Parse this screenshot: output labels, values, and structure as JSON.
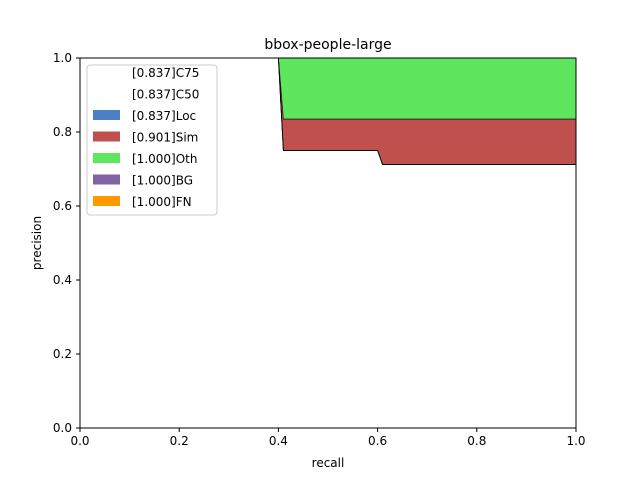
{
  "chart_data": {
    "type": "area",
    "title": "bbox-people-large",
    "xlabel": "recall",
    "ylabel": "precision",
    "xlim": [
      0,
      1
    ],
    "ylim": [
      0,
      1
    ],
    "xticks": [
      "0.0",
      "0.2",
      "0.4",
      "0.6",
      "0.8",
      "1.0"
    ],
    "yticks": [
      "0.0",
      "0.2",
      "0.4",
      "0.6",
      "0.8",
      "1.0"
    ],
    "grid": false,
    "legend_position": "upper-left",
    "series": [
      {
        "name": "[0.837]C75",
        "color": "#ffffff",
        "points": [
          [
            0,
            1
          ],
          [
            0.4,
            1
          ],
          [
            0.41,
            0.75
          ],
          [
            0.6,
            0.75
          ],
          [
            0.61,
            0.712
          ],
          [
            1.0,
            0.712
          ]
        ]
      },
      {
        "name": "[0.837]C50",
        "color": "#ffffff",
        "points": [
          [
            0,
            1
          ],
          [
            0.4,
            1
          ],
          [
            0.41,
            0.75
          ],
          [
            0.6,
            0.75
          ],
          [
            0.61,
            0.712
          ],
          [
            1.0,
            0.712
          ]
        ]
      },
      {
        "name": "[0.837]Loc",
        "color": "#4c7fc4",
        "points": [
          [
            0,
            1
          ],
          [
            0.4,
            1
          ],
          [
            0.41,
            0.75
          ],
          [
            0.6,
            0.75
          ],
          [
            0.61,
            0.712
          ],
          [
            1.0,
            0.712
          ]
        ]
      },
      {
        "name": "[0.901]Sim",
        "color": "#c0504d",
        "points": [
          [
            0,
            1
          ],
          [
            0.4,
            1
          ],
          [
            0.41,
            0.835
          ],
          [
            1.0,
            0.835
          ]
        ]
      },
      {
        "name": "[1.000]Oth",
        "color": "#5ee75e",
        "points": [
          [
            0,
            1
          ],
          [
            1.0,
            1
          ]
        ]
      },
      {
        "name": "[1.000]BG",
        "color": "#8064a2",
        "points": [
          [
            0,
            1
          ],
          [
            1.0,
            1
          ]
        ]
      },
      {
        "name": "[1.000]FN",
        "color": "#ff9900",
        "points": [
          [
            0,
            1
          ],
          [
            1.0,
            1
          ]
        ]
      }
    ]
  }
}
